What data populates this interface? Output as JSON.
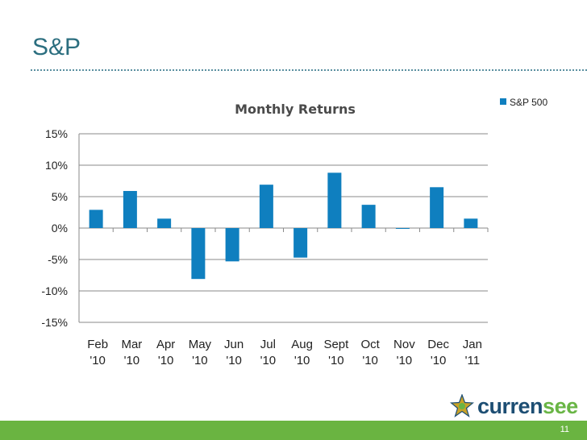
{
  "slide": {
    "title": "S&P",
    "page_number": "11"
  },
  "logo": {
    "icon": "star-logo-icon",
    "text_part1": "curren",
    "text_part2": "see",
    "colors": {
      "dark": "#1d4e73",
      "green": "#69b545",
      "gold": "#c9a227"
    }
  },
  "chart_data": {
    "type": "bar",
    "title": "Monthly Returns",
    "categories": [
      "Feb '10",
      "Mar '10",
      "Apr '10",
      "May '10",
      "Jun '10",
      "Jul '10",
      "Aug '10",
      "Sept '10",
      "Oct '10",
      "Nov '10",
      "Dec '10",
      "Jan '11"
    ],
    "category_lines": [
      [
        "Feb",
        "'10"
      ],
      [
        "Mar",
        "'10"
      ],
      [
        "Apr",
        "'10"
      ],
      [
        "May",
        "'10"
      ],
      [
        "Jun",
        "'10"
      ],
      [
        "Jul",
        "'10"
      ],
      [
        "Aug",
        "'10"
      ],
      [
        "Sept",
        "'10"
      ],
      [
        "Oct",
        "'10"
      ],
      [
        "Nov",
        "'10"
      ],
      [
        "Dec",
        "'10"
      ],
      [
        "Jan",
        "'11"
      ]
    ],
    "series": [
      {
        "name": "S&P 500",
        "values": [
          2.9,
          5.9,
          1.5,
          -8.1,
          -5.3,
          6.9,
          -4.7,
          8.8,
          3.7,
          -0.1,
          6.5,
          1.5
        ],
        "color": "#0f7fbf"
      }
    ],
    "ylim": [
      -15,
      15
    ],
    "yticks": [
      15,
      10,
      5,
      0,
      -5,
      -10,
      -15
    ],
    "ytick_labels": [
      "15%",
      "10%",
      "5%",
      "0%",
      "-5%",
      "-10%",
      "-15%"
    ],
    "xlabel": "",
    "ylabel": "",
    "grid": true,
    "legend": "top-right"
  }
}
